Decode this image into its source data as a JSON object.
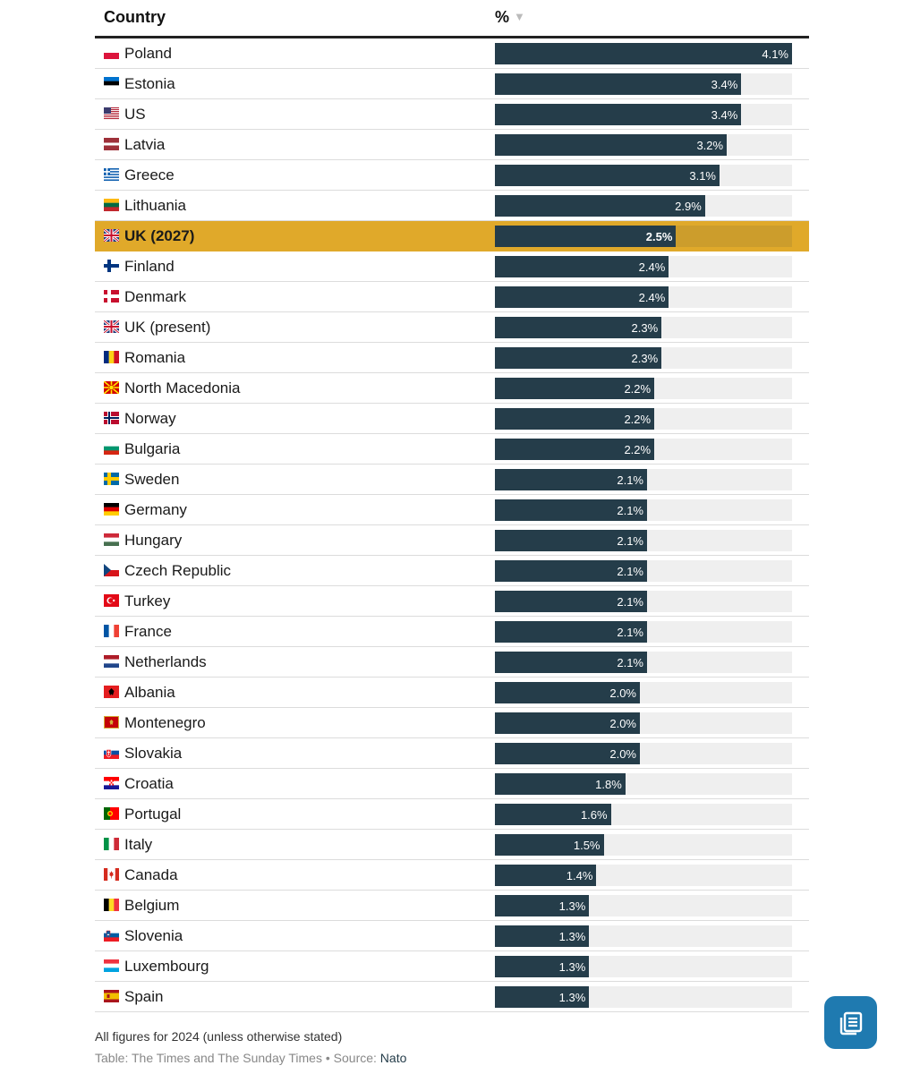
{
  "header": {
    "country": "Country",
    "percent": "%",
    "sort_icon": "sort-triangle-icon"
  },
  "chart_data": {
    "type": "bar",
    "orientation": "horizontal",
    "xlim": [
      0,
      4.1
    ],
    "unit": "%",
    "highlight": "UK (2027)",
    "categories": [
      "Poland",
      "Estonia",
      "US",
      "Latvia",
      "Greece",
      "Lithuania",
      "UK (2027)",
      "Finland",
      "Denmark",
      "UK (present)",
      "Romania",
      "North Macedonia",
      "Norway",
      "Bulgaria",
      "Sweden",
      "Germany",
      "Hungary",
      "Czech Republic",
      "Turkey",
      "France",
      "Netherlands",
      "Albania",
      "Montenegro",
      "Slovakia",
      "Croatia",
      "Portugal",
      "Italy",
      "Canada",
      "Belgium",
      "Slovenia",
      "Luxembourg",
      "Spain"
    ],
    "values": [
      4.1,
      3.4,
      3.4,
      3.2,
      3.1,
      2.9,
      2.5,
      2.4,
      2.4,
      2.3,
      2.3,
      2.2,
      2.2,
      2.2,
      2.1,
      2.1,
      2.1,
      2.1,
      2.1,
      2.1,
      2.1,
      2.0,
      2.0,
      2.0,
      1.8,
      1.6,
      1.5,
      1.4,
      1.3,
      1.3,
      1.3,
      1.3
    ],
    "labels": [
      "4.1%",
      "3.4%",
      "3.4%",
      "3.2%",
      "3.1%",
      "2.9%",
      "2.5%",
      "2.4%",
      "2.4%",
      "2.3%",
      "2.3%",
      "2.2%",
      "2.2%",
      "2.2%",
      "2.1%",
      "2.1%",
      "2.1%",
      "2.1%",
      "2.1%",
      "2.1%",
      "2.1%",
      "2.0%",
      "2.0%",
      "2.0%",
      "1.8%",
      "1.6%",
      "1.5%",
      "1.4%",
      "1.3%",
      "1.3%",
      "1.3%",
      "1.3%"
    ],
    "flags": [
      "poland-flag-icon",
      "estonia-flag-icon",
      "us-flag-icon",
      "latvia-flag-icon",
      "greece-flag-icon",
      "lithuania-flag-icon",
      "uk-flag-icon",
      "finland-flag-icon",
      "denmark-flag-icon",
      "uk-flag-icon",
      "romania-flag-icon",
      "north-macedonia-flag-icon",
      "norway-flag-icon",
      "bulgaria-flag-icon",
      "sweden-flag-icon",
      "germany-flag-icon",
      "hungary-flag-icon",
      "czech-republic-flag-icon",
      "turkey-flag-icon",
      "france-flag-icon",
      "netherlands-flag-icon",
      "albania-flag-icon",
      "montenegro-flag-icon",
      "slovakia-flag-icon",
      "croatia-flag-icon",
      "portugal-flag-icon",
      "italy-flag-icon",
      "canada-flag-icon",
      "belgium-flag-icon",
      "slovenia-flag-icon",
      "luxembourg-flag-icon",
      "spain-flag-icon"
    ]
  },
  "colors": {
    "bar": "#253d4a",
    "track": "#efefef",
    "highlight": "#e0a92a",
    "button": "#1f7ab0"
  },
  "footer": {
    "note": "All figures for 2024 (unless otherwise stated)",
    "table_credit": "Table: The Times and The Sunday Times",
    "separator": "•",
    "source_label": "Source:",
    "source": "Nato"
  },
  "fab_icon": "article-list-icon"
}
